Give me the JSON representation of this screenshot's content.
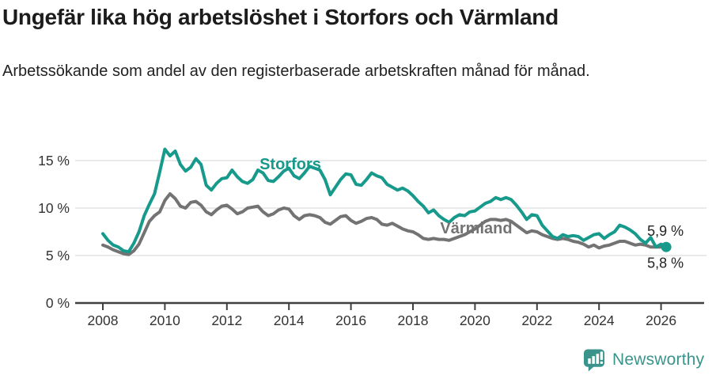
{
  "header": {
    "title": "Ungefär lika hög arbetslöshet i Storfors och Värmland",
    "subtitle": "Arbetssökande som andel av den registerbaserade arbetskraften månad för månad."
  },
  "footer": {
    "brand": "Newsworthy"
  },
  "colors": {
    "storfors": "#179a8b",
    "varmland": "#737373",
    "grid": "#e4e4e4",
    "axis": "#3f3f3f",
    "tick_text": "#333333",
    "end_label_text": "#222222",
    "brand": "#3b948c"
  },
  "chart_data": {
    "type": "line",
    "title": "Ungefär lika hög arbetslöshet i Storfors och Värmland",
    "xlabel": "",
    "ylabel": "",
    "y_unit": "%",
    "xlim": [
      2007.1,
      2027.4
    ],
    "ylim": [
      0,
      17.8
    ],
    "grid": true,
    "x_start": 2008.0,
    "x_step": 0.1666667,
    "x_ticks": [
      {
        "value": 2008,
        "label": "2008"
      },
      {
        "value": 2010,
        "label": "2010"
      },
      {
        "value": 2012,
        "label": "2012"
      },
      {
        "value": 2014,
        "label": "2014"
      },
      {
        "value": 2016,
        "label": "2016"
      },
      {
        "value": 2018,
        "label": "2018"
      },
      {
        "value": 2020,
        "label": "2020"
      },
      {
        "value": 2022,
        "label": "2022"
      },
      {
        "value": 2024,
        "label": "2024"
      },
      {
        "value": 2026,
        "label": "2026"
      }
    ],
    "y_ticks": [
      {
        "value": 0,
        "label": "0 %"
      },
      {
        "value": 5,
        "label": "5 %"
      },
      {
        "value": 10,
        "label": "10 %"
      },
      {
        "value": 15,
        "label": "15 %"
      }
    ],
    "series": [
      {
        "name": "Storfors",
        "color_key": "storfors",
        "end_label": "5,9 %",
        "end_dot": true,
        "values": [
          7.3,
          6.6,
          6.1,
          5.9,
          5.5,
          5.4,
          6.3,
          7.5,
          9.2,
          10.4,
          11.5,
          13.8,
          16.2,
          15.5,
          16.0,
          14.6,
          13.9,
          14.3,
          15.2,
          14.6,
          12.4,
          11.9,
          12.6,
          13.1,
          13.2,
          14.0,
          13.3,
          12.8,
          12.6,
          13.0,
          14.0,
          13.7,
          12.9,
          12.8,
          13.3,
          13.9,
          14.2,
          13.4,
          13.1,
          13.7,
          14.4,
          14.2,
          14.0,
          13.0,
          11.4,
          12.2,
          13.0,
          13.6,
          13.5,
          12.5,
          12.4,
          13.0,
          13.7,
          13.4,
          13.2,
          12.5,
          12.2,
          11.9,
          12.1,
          11.8,
          11.3,
          10.7,
          10.2,
          9.5,
          9.8,
          9.2,
          8.8,
          8.5,
          9.0,
          9.3,
          9.2,
          9.6,
          9.7,
          10.1,
          10.5,
          10.7,
          11.1,
          10.9,
          11.1,
          10.9,
          10.3,
          9.6,
          8.8,
          9.3,
          9.2,
          8.2,
          7.6,
          7.0,
          6.8,
          7.2,
          7.0,
          7.1,
          7.0,
          6.6,
          6.9,
          7.2,
          7.3,
          6.8,
          7.2,
          7.5,
          8.2,
          8.0,
          7.7,
          7.3,
          6.7,
          6.3,
          6.9,
          5.9,
          6.2,
          5.9
        ]
      },
      {
        "name": "Värmland",
        "color_key": "varmland",
        "end_label": "5,8 %",
        "end_dot": false,
        "values": [
          6.1,
          5.9,
          5.6,
          5.4,
          5.2,
          5.1,
          5.5,
          6.2,
          7.4,
          8.6,
          9.2,
          9.6,
          10.8,
          11.5,
          11.0,
          10.2,
          10.0,
          10.6,
          10.7,
          10.3,
          9.6,
          9.3,
          9.8,
          10.2,
          10.3,
          9.9,
          9.4,
          9.6,
          10.0,
          10.1,
          10.2,
          9.6,
          9.2,
          9.4,
          9.8,
          10.0,
          9.9,
          9.2,
          8.8,
          9.2,
          9.3,
          9.2,
          9.0,
          8.5,
          8.3,
          8.7,
          9.1,
          9.2,
          8.7,
          8.4,
          8.6,
          8.9,
          9.0,
          8.8,
          8.3,
          8.2,
          8.4,
          8.1,
          7.8,
          7.6,
          7.5,
          7.2,
          6.8,
          6.7,
          6.8,
          6.7,
          6.7,
          6.6,
          6.8,
          7.0,
          7.2,
          7.5,
          7.8,
          8.2,
          8.6,
          8.8,
          8.8,
          8.7,
          8.8,
          8.6,
          8.2,
          7.8,
          7.4,
          7.6,
          7.5,
          7.2,
          7.0,
          6.8,
          6.7,
          6.8,
          6.7,
          6.5,
          6.4,
          6.2,
          5.9,
          6.1,
          5.8,
          6.0,
          6.1,
          6.3,
          6.5,
          6.5,
          6.3,
          6.1,
          6.2,
          6.1,
          5.9,
          5.9,
          5.9,
          5.8
        ]
      }
    ]
  }
}
